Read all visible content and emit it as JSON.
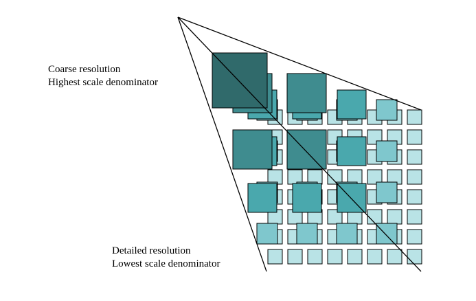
{
  "labels": {
    "coarse_line1": "Coarse resolution",
    "coarse_line2": "Highest scale denominator",
    "detailed_line1": "Detailed resolution",
    "detailed_line2": "Lowest scale denominator"
  },
  "colors": {
    "outline": "#000000",
    "level_1": "#b9e3e6",
    "level_2": "#7fc7cd",
    "level_3": "#4aa8ad",
    "level_4": "#3f8c8f",
    "level_5": "#306a6b"
  },
  "pyramid": {
    "levels": 5,
    "tiles_per_level": [
      64,
      16,
      9,
      4,
      1
    ]
  }
}
